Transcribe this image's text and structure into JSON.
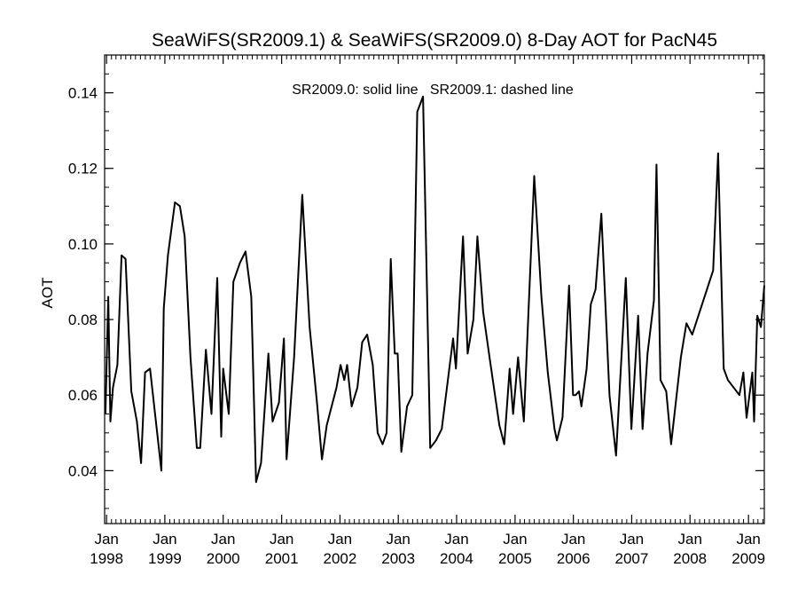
{
  "chart_data": {
    "type": "line",
    "title": "SeaWiFS(SR2009.1) & SeaWiFS(SR2009.0) 8-Day AOT for PacN45",
    "xlabel": "",
    "ylabel": "AOT",
    "annotation": "SR2009.0: solid line   SR2009.1: dashed line",
    "xlim": [
      "1997-12-20",
      "2009-04-10"
    ],
    "ylim": [
      0.026,
      0.15
    ],
    "y_ticks": [
      "0.04",
      "0.06",
      "0.08",
      "0.10",
      "0.12",
      "0.14"
    ],
    "x_ticks": [
      {
        "date": "1998-01-01",
        "month": "Jan",
        "year": "1998"
      },
      {
        "date": "1999-01-01",
        "month": "Jan",
        "year": "1999"
      },
      {
        "date": "2000-01-01",
        "month": "Jan",
        "year": "2000"
      },
      {
        "date": "2001-01-01",
        "month": "Jan",
        "year": "2001"
      },
      {
        "date": "2002-01-01",
        "month": "Jan",
        "year": "2002"
      },
      {
        "date": "2003-01-01",
        "month": "Jan",
        "year": "2003"
      },
      {
        "date": "2004-01-01",
        "month": "Jan",
        "year": "2004"
      },
      {
        "date": "2005-01-01",
        "month": "Jan",
        "year": "2005"
      },
      {
        "date": "2006-01-01",
        "month": "Jan",
        "year": "2006"
      },
      {
        "date": "2007-01-01",
        "month": "Jan",
        "year": "2007"
      },
      {
        "date": "2008-01-01",
        "month": "Jan",
        "year": "2008"
      },
      {
        "date": "2009-01-01",
        "month": "Jan",
        "year": "2009"
      }
    ],
    "grid": false,
    "series": [
      {
        "name": "SR2009.0",
        "style": "solid",
        "color": "#000000",
        "points": [
          [
            "1997-12-25",
            0.055
          ],
          [
            "1998-01-12",
            0.086
          ],
          [
            "1998-01-25",
            0.053
          ],
          [
            "1998-02-10",
            0.062
          ],
          [
            "1998-03-10",
            0.068
          ],
          [
            "1998-04-05",
            0.097
          ],
          [
            "1998-04-30",
            0.096
          ],
          [
            "1998-06-05",
            0.061
          ],
          [
            "1998-07-10",
            0.053
          ],
          [
            "1998-08-05",
            0.042
          ],
          [
            "1998-08-30",
            0.066
          ],
          [
            "1998-09-30",
            0.067
          ],
          [
            "1998-12-10",
            0.04
          ],
          [
            "1998-12-25",
            0.083
          ],
          [
            "1999-01-20",
            0.097
          ],
          [
            "1999-03-05",
            0.111
          ],
          [
            "1999-04-05",
            0.11
          ],
          [
            "1999-05-05",
            0.102
          ],
          [
            "1999-06-10",
            0.07
          ],
          [
            "1999-07-20",
            0.046
          ],
          [
            "1999-08-10",
            0.046
          ],
          [
            "1999-09-15",
            0.072
          ],
          [
            "1999-10-20",
            0.055
          ],
          [
            "1999-11-25",
            0.091
          ],
          [
            "1999-12-20",
            0.049
          ],
          [
            "2000-01-01",
            0.067
          ],
          [
            "2000-02-05",
            0.055
          ],
          [
            "2000-03-05",
            0.09
          ],
          [
            "2000-04-15",
            0.095
          ],
          [
            "2000-05-20",
            0.098
          ],
          [
            "2000-06-25",
            0.086
          ],
          [
            "2000-07-25",
            0.037
          ],
          [
            "2000-08-25",
            0.042
          ],
          [
            "2000-10-10",
            0.071
          ],
          [
            "2000-11-05",
            0.053
          ],
          [
            "2000-12-15",
            0.058
          ],
          [
            "2001-01-15",
            0.075
          ],
          [
            "2001-02-01",
            0.043
          ],
          [
            "2001-03-20",
            0.07
          ],
          [
            "2001-05-10",
            0.113
          ],
          [
            "2001-06-25",
            0.078
          ],
          [
            "2001-08-10",
            0.058
          ],
          [
            "2001-09-10",
            0.043
          ],
          [
            "2001-10-10",
            0.052
          ],
          [
            "2001-12-10",
            0.062
          ],
          [
            "2002-01-05",
            0.068
          ],
          [
            "2002-01-28",
            0.064
          ],
          [
            "2002-02-15",
            0.068
          ],
          [
            "2002-03-15",
            0.057
          ],
          [
            "2002-04-20",
            0.062
          ],
          [
            "2002-05-20",
            0.074
          ],
          [
            "2002-06-20",
            0.076
          ],
          [
            "2002-07-25",
            0.068
          ],
          [
            "2002-08-25",
            0.05
          ],
          [
            "2002-09-25",
            0.047
          ],
          [
            "2002-10-20",
            0.05
          ],
          [
            "2002-11-15",
            0.096
          ],
          [
            "2002-12-10",
            0.071
          ],
          [
            "2002-12-28",
            0.071
          ],
          [
            "2003-01-20",
            0.045
          ],
          [
            "2003-02-25",
            0.057
          ],
          [
            "2003-03-30",
            0.06
          ],
          [
            "2003-04-30",
            0.135
          ],
          [
            "2003-06-05",
            0.139
          ],
          [
            "2003-07-20",
            0.046
          ],
          [
            "2003-08-25",
            0.048
          ],
          [
            "2003-09-30",
            0.051
          ],
          [
            "2003-12-10",
            0.075
          ],
          [
            "2003-12-28",
            0.067
          ],
          [
            "2004-02-10",
            0.102
          ],
          [
            "2004-03-10",
            0.071
          ],
          [
            "2004-04-15",
            0.08
          ],
          [
            "2004-05-10",
            0.102
          ],
          [
            "2004-06-15",
            0.082
          ],
          [
            "2004-07-25",
            0.07
          ],
          [
            "2004-09-25",
            0.052
          ],
          [
            "2004-10-25",
            0.047
          ],
          [
            "2004-11-28",
            0.067
          ],
          [
            "2004-12-20",
            0.055
          ],
          [
            "2005-01-20",
            0.07
          ],
          [
            "2005-02-25",
            0.053
          ],
          [
            "2005-05-01",
            0.118
          ],
          [
            "2005-06-15",
            0.086
          ],
          [
            "2005-07-25",
            0.066
          ],
          [
            "2005-09-05",
            0.051
          ],
          [
            "2005-09-20",
            0.048
          ],
          [
            "2005-10-25",
            0.054
          ],
          [
            "2005-12-05",
            0.089
          ],
          [
            "2005-12-30",
            0.06
          ],
          [
            "2006-01-15",
            0.06
          ],
          [
            "2006-02-05",
            0.061
          ],
          [
            "2006-02-20",
            0.057
          ],
          [
            "2006-03-25",
            0.067
          ],
          [
            "2006-04-20",
            0.084
          ],
          [
            "2006-05-20",
            0.088
          ],
          [
            "2006-06-25",
            0.108
          ],
          [
            "2006-08-15",
            0.06
          ],
          [
            "2006-09-25",
            0.044
          ],
          [
            "2006-11-25",
            0.091
          ],
          [
            "2006-12-30",
            0.051
          ],
          [
            "2007-02-10",
            0.081
          ],
          [
            "2007-03-10",
            0.051
          ],
          [
            "2007-04-10",
            0.071
          ],
          [
            "2007-05-20",
            0.085
          ],
          [
            "2007-06-05",
            0.121
          ],
          [
            "2007-06-30",
            0.064
          ],
          [
            "2007-08-05",
            0.061
          ],
          [
            "2007-09-05",
            0.047
          ],
          [
            "2007-11-05",
            0.07
          ],
          [
            "2007-12-10",
            0.079
          ],
          [
            "2008-01-15",
            0.076
          ],
          [
            "2008-05-25",
            0.093
          ],
          [
            "2008-06-25",
            0.124
          ],
          [
            "2008-07-30",
            0.067
          ],
          [
            "2008-08-25",
            0.064
          ],
          [
            "2008-11-05",
            0.06
          ],
          [
            "2008-11-30",
            0.066
          ],
          [
            "2008-12-20",
            0.054
          ],
          [
            "2009-01-25",
            0.066
          ],
          [
            "2009-02-05",
            0.053
          ],
          [
            "2009-02-25",
            0.081
          ],
          [
            "2009-03-20",
            0.078
          ],
          [
            "2009-04-10",
            0.089
          ]
        ]
      }
    ]
  }
}
